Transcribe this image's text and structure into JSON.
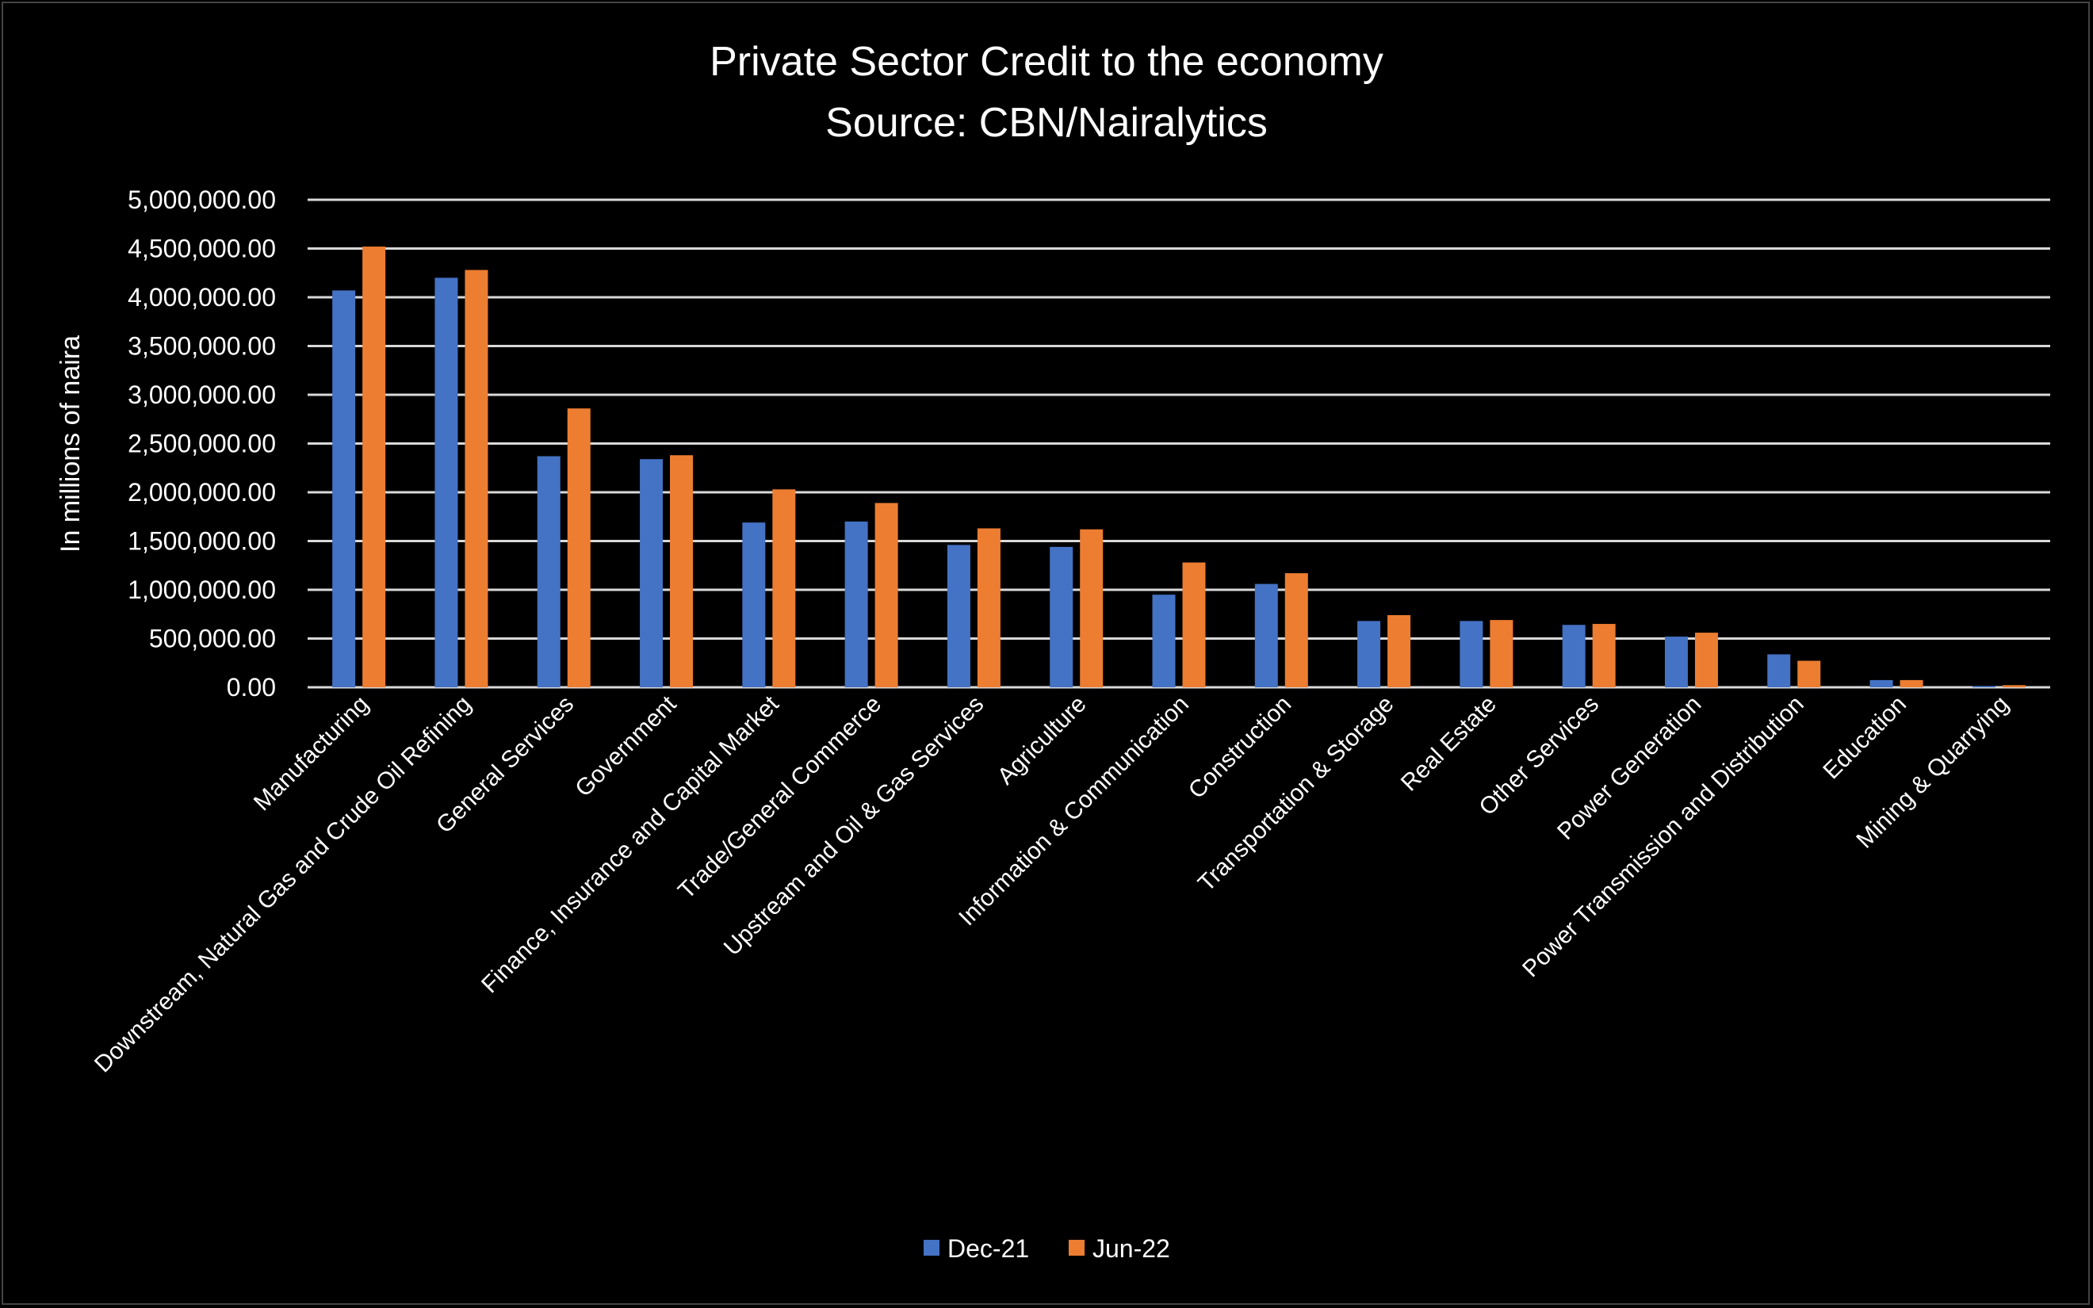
{
  "chart_data": {
    "type": "bar",
    "title": "Private Sector Credit to the economy",
    "subtitle": "Source: CBN/Nairalytics",
    "xlabel": "",
    "ylabel": "In millions of naira",
    "ylim": [
      0,
      5000000
    ],
    "yticks": [
      "0.00",
      "500,000.00",
      "1,000,000.00",
      "1,500,000.00",
      "2,000,000.00",
      "2,500,000.00",
      "3,000,000.00",
      "3,500,000.00",
      "4,000,000.00",
      "4,500,000.00",
      "5,000,000.00"
    ],
    "grid": true,
    "legend_position": "bottom",
    "categories": [
      "Manufacturing",
      "Downstream, Natural Gas and Crude Oil Refining",
      "General Services",
      "Government",
      "Finance, Insurance and Capital Market",
      "Trade/General Commerce",
      "Upstream and Oil & Gas Services",
      "Agriculture",
      "Information & Communication",
      "Construction",
      "Transportation & Storage",
      "Real Estate",
      "Other Services",
      "Power Generation",
      "Power Transmission and Distribution",
      "Education",
      "Mining & Quarrying"
    ],
    "series": [
      {
        "name": "Dec-21",
        "color": "#4472C4",
        "values": [
          4070000,
          4200000,
          2370000,
          2340000,
          1690000,
          1700000,
          1460000,
          1440000,
          950000,
          1060000,
          680000,
          680000,
          640000,
          520000,
          338000,
          74000,
          14000
        ]
      },
      {
        "name": "Jun-22",
        "color": "#ED7D31",
        "values": [
          4520000,
          4280000,
          2860000,
          2380000,
          2030000,
          1890000,
          1630000,
          1620000,
          1280000,
          1170000,
          740000,
          690000,
          650000,
          560000,
          272000,
          74000,
          22000
        ]
      }
    ]
  }
}
